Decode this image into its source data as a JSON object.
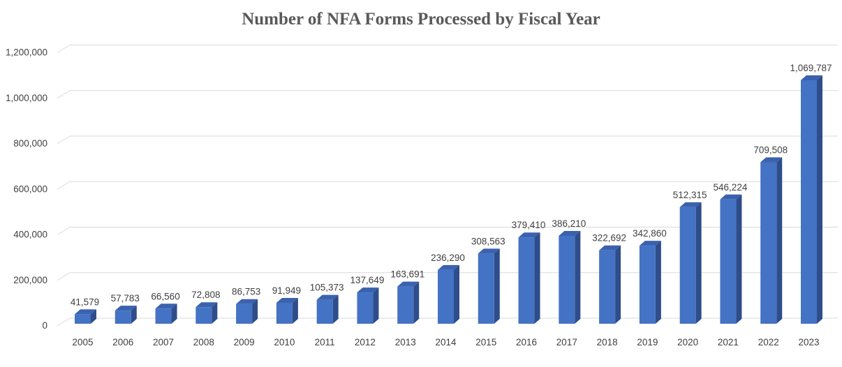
{
  "chart_data": {
    "type": "bar",
    "style": "3d-column",
    "title": "Number of NFA Forms Processed by Fiscal Year",
    "xlabel": "",
    "ylabel": "",
    "categories": [
      "2005",
      "2006",
      "2007",
      "2008",
      "2009",
      "2010",
      "2011",
      "2012",
      "2013",
      "2014",
      "2015",
      "2016",
      "2017",
      "2018",
      "2019",
      "2020",
      "2021",
      "2022",
      "2023"
    ],
    "values": [
      41579,
      57783,
      66560,
      72808,
      86753,
      91949,
      105373,
      137649,
      163691,
      236290,
      308563,
      379410,
      386210,
      322692,
      342860,
      512315,
      546224,
      709508,
      1069787
    ],
    "data_labels": [
      "41,579",
      "57,783",
      "66,560",
      "72,808",
      "86,753",
      "91,949",
      "105,373",
      "137,649",
      "163,691",
      "236,290",
      "308,563",
      "379,410",
      "386,210",
      "322,692",
      "342,860",
      "512,315",
      "546,224",
      "709,508",
      "1,069,787"
    ],
    "ylim": [
      0,
      1200000
    ],
    "yticks": [
      0,
      200000,
      400000,
      600000,
      800000,
      1000000,
      1200000
    ],
    "ytick_labels": [
      "0",
      "200,000",
      "400,000",
      "600,000",
      "800,000",
      "1,000,000",
      "1,200,000"
    ],
    "grid": true,
    "legend": "none",
    "colors": {
      "front": "#4472C4",
      "side": "#2E4D8A",
      "top": "#3A62AE",
      "grid": "#D9D9D9"
    }
  }
}
